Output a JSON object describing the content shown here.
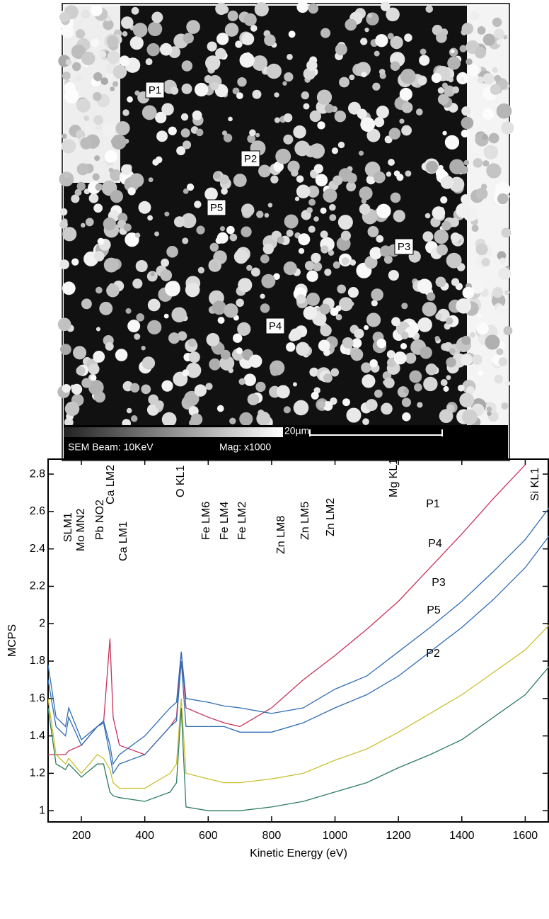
{
  "image": {
    "labels": [
      "P1",
      "P2",
      "P5",
      "P3",
      "P4"
    ],
    "beam_text": "SEM Beam: 10KeV",
    "mag_text": "Mag: x1000",
    "scale_text": "20µm"
  },
  "chart_data": {
    "type": "line",
    "ylabel": "MCPS",
    "xlabel": "Kinetic Energy (eV)",
    "x": [
      95,
      120,
      150,
      160,
      200,
      250,
      270,
      290,
      300,
      320,
      400,
      480,
      500,
      515,
      530,
      600,
      650,
      700,
      800,
      900,
      1000,
      1100,
      1200,
      1300,
      1400,
      1500,
      1600,
      1680
    ],
    "series": [
      {
        "name": "P1",
        "color": "#c8325a",
        "values": [
          1.3,
          1.3,
          1.3,
          1.32,
          1.35,
          1.45,
          1.47,
          1.92,
          1.5,
          1.35,
          1.3,
          1.45,
          1.5,
          1.85,
          1.55,
          1.5,
          1.47,
          1.45,
          1.55,
          1.7,
          1.83,
          1.97,
          2.12,
          2.3,
          2.48,
          2.67,
          2.85,
          null
        ]
      },
      {
        "name": "P4",
        "color": "#2f6db5",
        "values": [
          1.78,
          1.5,
          1.45,
          1.55,
          1.38,
          1.45,
          1.48,
          1.35,
          1.25,
          1.3,
          1.4,
          1.55,
          1.58,
          1.85,
          1.6,
          1.58,
          1.56,
          1.55,
          1.52,
          1.55,
          1.65,
          1.72,
          1.85,
          1.98,
          2.12,
          2.28,
          2.45,
          2.63
        ]
      },
      {
        "name": "P3",
        "color": "#2f6db5",
        "values": [
          1.7,
          1.45,
          1.4,
          1.5,
          1.35,
          1.45,
          1.47,
          1.3,
          1.2,
          1.25,
          1.3,
          1.45,
          1.48,
          1.8,
          1.45,
          1.45,
          1.45,
          1.42,
          1.42,
          1.47,
          1.55,
          1.62,
          1.72,
          1.85,
          1.98,
          2.13,
          2.3,
          2.48
        ]
      },
      {
        "name": "P5",
        "color": "#c8c030",
        "values": [
          1.6,
          1.3,
          1.25,
          1.28,
          1.2,
          1.3,
          1.28,
          1.22,
          1.15,
          1.12,
          1.12,
          1.2,
          1.25,
          1.6,
          1.2,
          1.17,
          1.15,
          1.15,
          1.17,
          1.2,
          1.27,
          1.33,
          1.42,
          1.52,
          1.62,
          1.74,
          1.86,
          2.0
        ]
      },
      {
        "name": "P2",
        "color": "#2e7d5e",
        "values": [
          1.55,
          1.25,
          1.22,
          1.25,
          1.18,
          1.25,
          1.25,
          1.1,
          1.08,
          1.07,
          1.05,
          1.1,
          1.15,
          1.55,
          1.02,
          1.0,
          1.0,
          1.0,
          1.02,
          1.05,
          1.1,
          1.15,
          1.23,
          1.3,
          1.38,
          1.5,
          1.62,
          1.78
        ]
      }
    ],
    "xlim": [
      95,
      1675
    ],
    "ylim": [
      0.94,
      2.88
    ],
    "xticks": [
      200,
      400,
      600,
      800,
      1000,
      1200,
      1400,
      1600
    ],
    "yticks": [
      1,
      1.2,
      1.4,
      1.6,
      1.8,
      2,
      2.2,
      2.4,
      2.6,
      2.8
    ],
    "annotations": [
      "SLM1",
      "Mo MN2",
      "Pb NO2",
      "Ca LM2",
      "Ca LM1",
      "O KL1",
      "Fe LM6",
      "Fe LM4",
      "Fe LM2",
      "Zn LM8",
      "Zn LM5",
      "Zn LM2",
      "Mg KL1",
      "Si KL1"
    ]
  }
}
